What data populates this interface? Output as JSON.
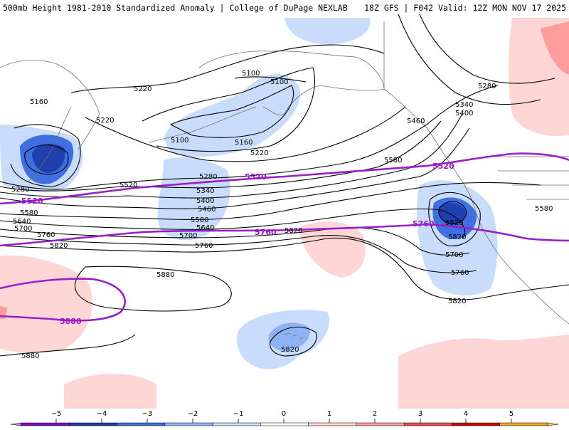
{
  "title_left": "500mb Height 1981-2010 Standardized Anomaly | College of DuPage NEXLAB",
  "title_right": "18Z GFS | F042 Valid: 12Z MON NOV 17 2025",
  "colors": {
    "ocean": "#ffffff",
    "height_contour": "#000000",
    "highlight_contour": "#9a1ec8",
    "coast": "#606060"
  },
  "height_labels": [
    "5100",
    "5100",
    "5100",
    "5160",
    "5160",
    "5220",
    "5220",
    "5220",
    "5280",
    "5280",
    "5280",
    "5340",
    "5340",
    "5400",
    "5400",
    "5460",
    "5460",
    "5520",
    "5520",
    "5580",
    "5580",
    "5580",
    "5580",
    "5640",
    "5640",
    "5700",
    "5700",
    "5700",
    "5760",
    "5760",
    "5760",
    "5820",
    "5820",
    "5820",
    "5820",
    "5820",
    "5880",
    "5880"
  ],
  "highlight_labels": [
    "5520",
    "5520",
    "5520",
    "5760",
    "5760",
    "5880"
  ],
  "colorbar": {
    "ticks": [
      "−5",
      "−4",
      "−3",
      "−2",
      "−1",
      "0",
      "1",
      "2",
      "3",
      "4",
      "5"
    ],
    "segments": [
      "#c77ee0",
      "#7b0fc4",
      "#1f3fae",
      "#3f6fe0",
      "#8fb2f5",
      "#c9dcfb",
      "#ffffff",
      "#ffd6d6",
      "#ff9c9c",
      "#ee4a4a",
      "#c80808",
      "#ffa020",
      "#ffd24a"
    ]
  }
}
